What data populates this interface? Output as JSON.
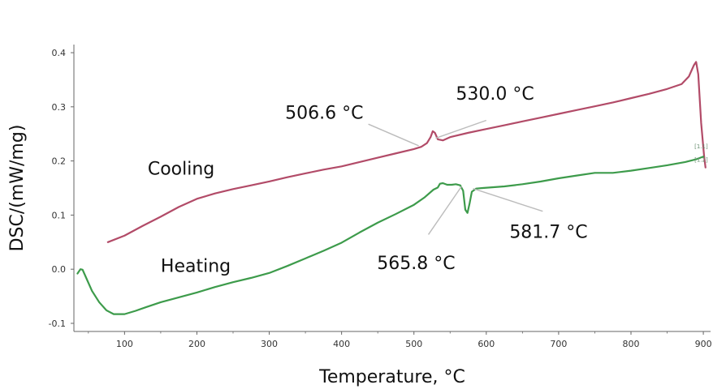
{
  "chart_data": {
    "type": "line",
    "xlabel": "Temperature, °C",
    "ylabel": "DSC/(mW/mg)",
    "xlim": [
      30,
      910
    ],
    "ylim": [
      -0.115,
      0.415
    ],
    "x_ticks": [
      100,
      200,
      300,
      400,
      500,
      600,
      700,
      800,
      900
    ],
    "x_tick_labels": [
      "100",
      "200",
      "300",
      "400",
      "500",
      "600",
      "700",
      "800",
      "900"
    ],
    "y_ticks": [
      -0.1,
      0.0,
      0.1,
      0.2,
      0.3,
      0.4
    ],
    "y_tick_labels": [
      "-0.1",
      "0.0",
      "0.1",
      "0.2",
      "0.3",
      "0.4"
    ],
    "grid": false,
    "colors": {
      "cooling": "#b24b68",
      "heating": "#3d9b4b",
      "axis": "#666666",
      "leader": "#bcbcbc"
    },
    "series": [
      {
        "name": "Cooling",
        "label_at": [
          132,
          0.175
        ],
        "points": [
          [
            77,
            0.05
          ],
          [
            100,
            0.062
          ],
          [
            125,
            0.08
          ],
          [
            150,
            0.097
          ],
          [
            175,
            0.115
          ],
          [
            200,
            0.13
          ],
          [
            225,
            0.14
          ],
          [
            250,
            0.148
          ],
          [
            275,
            0.155
          ],
          [
            300,
            0.162
          ],
          [
            325,
            0.17
          ],
          [
            350,
            0.177
          ],
          [
            375,
            0.184
          ],
          [
            400,
            0.19
          ],
          [
            425,
            0.198
          ],
          [
            450,
            0.206
          ],
          [
            475,
            0.214
          ],
          [
            500,
            0.222
          ],
          [
            510,
            0.226
          ],
          [
            518,
            0.233
          ],
          [
            523,
            0.244
          ],
          [
            526,
            0.255
          ],
          [
            529,
            0.252
          ],
          [
            533,
            0.24
          ],
          [
            540,
            0.238
          ],
          [
            550,
            0.244
          ],
          [
            575,
            0.252
          ],
          [
            600,
            0.259
          ],
          [
            625,
            0.266
          ],
          [
            650,
            0.273
          ],
          [
            675,
            0.28
          ],
          [
            700,
            0.287
          ],
          [
            725,
            0.294
          ],
          [
            750,
            0.301
          ],
          [
            775,
            0.308
          ],
          [
            800,
            0.316
          ],
          [
            825,
            0.324
          ],
          [
            850,
            0.333
          ],
          [
            870,
            0.342
          ],
          [
            880,
            0.356
          ],
          [
            887,
            0.377
          ],
          [
            890,
            0.383
          ],
          [
            893,
            0.36
          ],
          [
            897,
            0.27
          ],
          [
            901,
            0.21
          ],
          [
            903,
            0.188
          ]
        ]
      },
      {
        "name": "Heating",
        "label_at": [
          150,
          -0.005
        ],
        "points": [
          [
            35,
            -0.008
          ],
          [
            39,
            0.0
          ],
          [
            42,
            -0.001
          ],
          [
            47,
            -0.016
          ],
          [
            55,
            -0.04
          ],
          [
            65,
            -0.061
          ],
          [
            75,
            -0.076
          ],
          [
            85,
            -0.083
          ],
          [
            100,
            -0.083
          ],
          [
            115,
            -0.077
          ],
          [
            130,
            -0.07
          ],
          [
            150,
            -0.061
          ],
          [
            175,
            -0.052
          ],
          [
            200,
            -0.043
          ],
          [
            225,
            -0.033
          ],
          [
            250,
            -0.024
          ],
          [
            275,
            -0.016
          ],
          [
            300,
            -0.007
          ],
          [
            325,
            0.006
          ],
          [
            350,
            0.02
          ],
          [
            375,
            0.034
          ],
          [
            400,
            0.049
          ],
          [
            425,
            0.068
          ],
          [
            450,
            0.086
          ],
          [
            475,
            0.102
          ],
          [
            500,
            0.119
          ],
          [
            515,
            0.133
          ],
          [
            527,
            0.147
          ],
          [
            533,
            0.151
          ],
          [
            536,
            0.158
          ],
          [
            540,
            0.159
          ],
          [
            546,
            0.156
          ],
          [
            552,
            0.156
          ],
          [
            558,
            0.157
          ],
          [
            564,
            0.155
          ],
          [
            568,
            0.145
          ],
          [
            571,
            0.11
          ],
          [
            574,
            0.104
          ],
          [
            577,
            0.122
          ],
          [
            580,
            0.143
          ],
          [
            586,
            0.149
          ],
          [
            595,
            0.15
          ],
          [
            625,
            0.153
          ],
          [
            650,
            0.157
          ],
          [
            675,
            0.162
          ],
          [
            700,
            0.168
          ],
          [
            725,
            0.173
          ],
          [
            750,
            0.178
          ],
          [
            775,
            0.178
          ],
          [
            800,
            0.182
          ],
          [
            825,
            0.187
          ],
          [
            850,
            0.192
          ],
          [
            875,
            0.198
          ],
          [
            890,
            0.203
          ],
          [
            900,
            0.208
          ]
        ]
      }
    ],
    "annotations": [
      {
        "text": "506.6 °C",
        "label": [
          322,
          0.278
        ],
        "target": [
          506.6,
          0.228
        ],
        "leader_from": [
          437,
          0.268
        ]
      },
      {
        "text": "530.0 °C",
        "label": [
          558,
          0.313
        ],
        "target": [
          530.0,
          0.242
        ],
        "leader_from": [
          600,
          0.275
        ]
      },
      {
        "text": "565.8 °C",
        "label": [
          449,
          0.0
        ],
        "target": [
          565.8,
          0.153
        ],
        "leader_from": [
          520,
          0.064
        ]
      },
      {
        "text": "581.7 °C",
        "label": [
          632,
          0.058
        ],
        "target": [
          581.7,
          0.149
        ],
        "leader_from": [
          678,
          0.107
        ]
      }
    ],
    "end_markers": [
      {
        "text": "[1.1]",
        "at": [
          897,
          0.223
        ]
      },
      {
        "text": "[1.2]",
        "at": [
          897,
          0.199
        ]
      }
    ]
  }
}
